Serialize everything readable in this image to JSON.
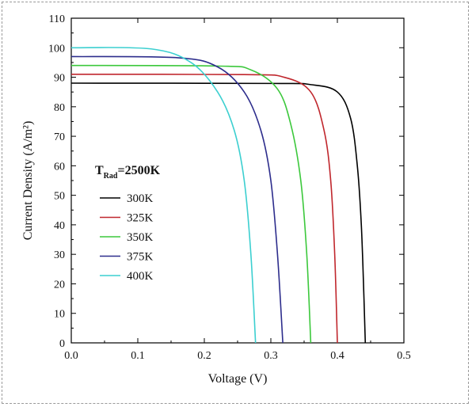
{
  "chart_data": {
    "type": "line",
    "xlabel": "Voltage (V)",
    "ylabel": "Current Density (A/m²)",
    "xlim": [
      0.0,
      0.5
    ],
    "ylim": [
      0,
      110
    ],
    "xticks": [
      "0.0",
      "0.1",
      "0.2",
      "0.3",
      "0.4",
      "0.5"
    ],
    "yticks": [
      "0",
      "10",
      "20",
      "30",
      "40",
      "50",
      "60",
      "70",
      "80",
      "90",
      "100",
      "110"
    ],
    "grid": false,
    "legend_placement": "center-left",
    "legend_title": {
      "main": "T",
      "sub": "Rad",
      "rest": "=2500K"
    },
    "series": [
      {
        "name": "300K",
        "color": "#000000",
        "isc": 88.0,
        "voc": 0.442,
        "points": [
          [
            0.0,
            88.0
          ],
          [
            0.3,
            87.9
          ],
          [
            0.36,
            87.5
          ],
          [
            0.4,
            85.0
          ],
          [
            0.42,
            76.0
          ],
          [
            0.43,
            60.0
          ],
          [
            0.436,
            40.0
          ],
          [
            0.44,
            15.0
          ],
          [
            0.442,
            0.0
          ]
        ]
      },
      {
        "name": "325K",
        "color": "#c0272d",
        "isc": 91.0,
        "voc": 0.4,
        "points": [
          [
            0.0,
            91.0
          ],
          [
            0.26,
            90.9
          ],
          [
            0.32,
            90.0
          ],
          [
            0.36,
            85.0
          ],
          [
            0.38,
            72.0
          ],
          [
            0.39,
            55.0
          ],
          [
            0.396,
            30.0
          ],
          [
            0.4,
            0.0
          ]
        ]
      },
      {
        "name": "350K",
        "color": "#3cc83c",
        "isc": 94.0,
        "voc": 0.36,
        "points": [
          [
            0.0,
            94.0
          ],
          [
            0.22,
            93.8
          ],
          [
            0.27,
            92.5
          ],
          [
            0.31,
            86.0
          ],
          [
            0.33,
            74.0
          ],
          [
            0.345,
            55.0
          ],
          [
            0.354,
            30.0
          ],
          [
            0.36,
            0.0
          ]
        ]
      },
      {
        "name": "375K",
        "color": "#2d2d8c",
        "isc": 97.0,
        "voc": 0.318,
        "points": [
          [
            0.0,
            97.0
          ],
          [
            0.16,
            96.6
          ],
          [
            0.22,
            93.5
          ],
          [
            0.26,
            85.0
          ],
          [
            0.285,
            72.0
          ],
          [
            0.3,
            55.0
          ],
          [
            0.31,
            30.0
          ],
          [
            0.318,
            0.0
          ]
        ]
      },
      {
        "name": "400K",
        "color": "#3ccfd0",
        "isc": 100.0,
        "voc": 0.277,
        "points": [
          [
            0.0,
            100.0
          ],
          [
            0.12,
            99.6
          ],
          [
            0.18,
            95.0
          ],
          [
            0.22,
            85.0
          ],
          [
            0.245,
            72.0
          ],
          [
            0.26,
            55.0
          ],
          [
            0.27,
            30.0
          ],
          [
            0.277,
            0.0
          ]
        ]
      }
    ]
  }
}
